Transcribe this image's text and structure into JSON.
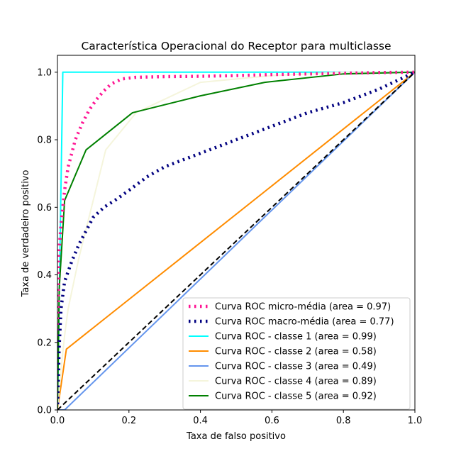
{
  "chart_data": {
    "type": "line",
    "title": "Característica Operacional do Receptor para multiclasse",
    "xlabel": "Taxa de falso positivo",
    "ylabel": "Taxa de verdadeiro positivo",
    "xlim": [
      0.0,
      1.0
    ],
    "ylim": [
      0.0,
      1.05
    ],
    "xticks": [
      "0.0",
      "0.2",
      "0.4",
      "0.6",
      "0.8",
      "1.0"
    ],
    "yticks": [
      "0.0",
      "0.2",
      "0.4",
      "0.6",
      "0.8",
      "1.0"
    ],
    "grid": false,
    "legend_position": "lower-right",
    "series": [
      {
        "name": "Curva ROC micro-média (area = 0.97)",
        "color": "#ff1493",
        "style": "dotted",
        "x": [
          0.0,
          0.003,
          0.01,
          0.02,
          0.03,
          0.05,
          0.07,
          0.09,
          0.11,
          0.13,
          0.15,
          0.18,
          0.22,
          0.3,
          0.4,
          0.5,
          0.6,
          0.7,
          0.8,
          0.9,
          1.0
        ],
        "y": [
          0.0,
          0.45,
          0.55,
          0.65,
          0.72,
          0.8,
          0.85,
          0.89,
          0.92,
          0.945,
          0.965,
          0.98,
          0.985,
          0.987,
          0.988,
          0.99,
          0.993,
          0.995,
          0.997,
          0.999,
          1.0
        ]
      },
      {
        "name": "Curva ROC macro-média (area = 0.77)",
        "color": "#000080",
        "style": "dotted",
        "x": [
          0.0,
          0.005,
          0.01,
          0.02,
          0.04,
          0.06,
          0.08,
          0.1,
          0.13,
          0.16,
          0.2,
          0.25,
          0.3,
          0.35,
          0.4,
          0.5,
          0.6,
          0.7,
          0.8,
          0.9,
          1.0
        ],
        "y": [
          0.0,
          0.19,
          0.3,
          0.38,
          0.44,
          0.49,
          0.53,
          0.57,
          0.6,
          0.62,
          0.65,
          0.69,
          0.72,
          0.74,
          0.76,
          0.8,
          0.84,
          0.88,
          0.91,
          0.95,
          1.0
        ]
      },
      {
        "name": "Curva ROC - classe 1 (area = 0.99)",
        "color": "#00ffff",
        "style": "solid",
        "x": [
          0.0,
          0.015,
          1.0
        ],
        "y": [
          0.0,
          1.0,
          1.0
        ]
      },
      {
        "name": "Curva ROC - classe 2 (area = 0.58)",
        "color": "#ff8c00",
        "style": "solid",
        "x": [
          0.0,
          0.025,
          1.0
        ],
        "y": [
          0.0,
          0.18,
          1.0
        ]
      },
      {
        "name": "Curva ROC - classe 3 (area = 0.49)",
        "color": "#6495ed",
        "style": "solid",
        "x": [
          0.0,
          0.02,
          1.0
        ],
        "y": [
          0.0,
          0.0,
          1.0
        ]
      },
      {
        "name": "Curva ROC - classe 4 (area = 0.89)",
        "color": "#f5f5dc",
        "style": "solid",
        "x": [
          0.0,
          0.01,
          0.02,
          0.03,
          0.06,
          0.1,
          0.135,
          0.22,
          0.4,
          0.6,
          0.8,
          1.0
        ],
        "y": [
          0.0,
          0.12,
          0.22,
          0.3,
          0.45,
          0.62,
          0.77,
          0.88,
          0.97,
          0.99,
          1.0,
          1.0
        ]
      },
      {
        "name": "Curva ROC - classe 5 (area = 0.92)",
        "color": "#008000",
        "style": "solid",
        "x": [
          0.0,
          0.005,
          0.02,
          0.08,
          0.21,
          0.4,
          0.58,
          0.8,
          1.0
        ],
        "y": [
          0.0,
          0.36,
          0.62,
          0.77,
          0.88,
          0.93,
          0.97,
          0.995,
          1.0
        ]
      },
      {
        "name": "",
        "color": "#000000",
        "style": "dashed",
        "x": [
          0.0,
          1.0
        ],
        "y": [
          0.0,
          1.0
        ]
      }
    ]
  }
}
